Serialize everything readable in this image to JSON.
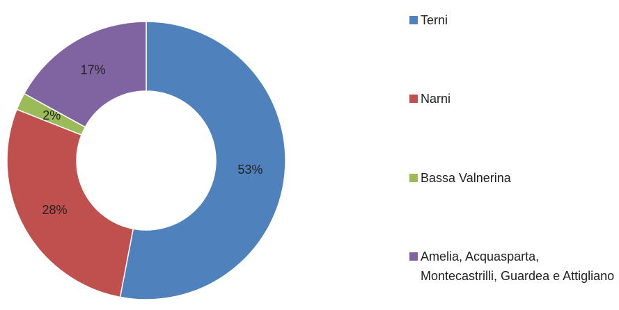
{
  "chart_data": {
    "type": "donut",
    "categories": [
      "Terni",
      "Narni",
      "Bassa Valnerina",
      "Amelia, Acquasparta, Montecastrilli, Guardea e Attigliano"
    ],
    "values": [
      53,
      28,
      2,
      17
    ],
    "value_labels": [
      "53%",
      "28%",
      "2%",
      "17%"
    ],
    "colors": [
      "#4f81bd",
      "#c0504d",
      "#9bbb59",
      "#8064a2"
    ],
    "legend": "right"
  }
}
